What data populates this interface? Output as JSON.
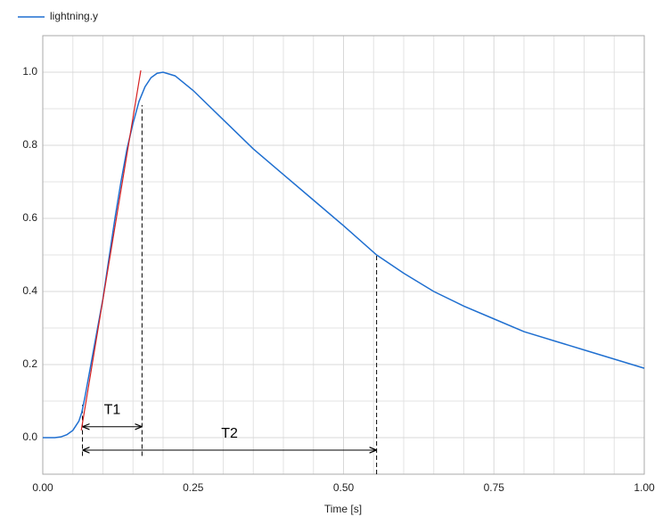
{
  "chart_data": {
    "type": "line",
    "x_label": "Time [s]",
    "x": [
      0,
      0.02,
      0.03,
      0.04,
      0.05,
      0.06,
      0.065,
      0.07,
      0.08,
      0.09,
      0.1,
      0.11,
      0.12,
      0.13,
      0.14,
      0.15,
      0.16,
      0.17,
      0.18,
      0.19,
      0.2,
      0.22,
      0.25,
      0.3,
      0.35,
      0.4,
      0.45,
      0.5,
      0.555,
      0.6,
      0.65,
      0.7,
      0.75,
      0.8,
      0.85,
      0.9,
      0.95,
      1.0
    ],
    "series": [
      {
        "name": "lightning.y",
        "color": "#1f6fd0",
        "values": [
          0,
          0,
          0.002,
          0.008,
          0.02,
          0.045,
          0.07,
          0.11,
          0.2,
          0.29,
          0.38,
          0.49,
          0.6,
          0.7,
          0.79,
          0.86,
          0.92,
          0.96,
          0.985,
          0.997,
          1.0,
          0.99,
          0.95,
          0.87,
          0.79,
          0.72,
          0.65,
          0.58,
          0.5,
          0.45,
          0.4,
          0.36,
          0.325,
          0.29,
          0.265,
          0.24,
          0.215,
          0.19
        ]
      }
    ],
    "tangent": {
      "color": "#d62020",
      "x": [
        0.064,
        0.163
      ],
      "y": [
        0.02,
        1.005
      ]
    },
    "dashed_lines": [
      {
        "x": 0.066,
        "y1": -0.05,
        "y2": 0.09
      },
      {
        "x": 0.165,
        "y1": -0.05,
        "y2": 0.91
      },
      {
        "x": 0.555,
        "y1": -0.1,
        "y2": 0.5
      }
    ],
    "arrows": [
      {
        "label": "T1",
        "x1": 0.066,
        "x2": 0.165,
        "y": 0.03,
        "label_y": 0.075
      },
      {
        "label": "T2",
        "x1": 0.066,
        "x2": 0.555,
        "y": -0.034,
        "label_y": 0.01
      }
    ],
    "xlim": [
      0,
      1
    ],
    "ylim": [
      -0.1,
      1.1
    ],
    "xticks": [
      {
        "value": 0,
        "label": "0.00"
      },
      0.25,
      {
        "value": 0.5,
        "label": "0.50"
      },
      0.75,
      {
        "value": 1,
        "label": "1.00"
      }
    ],
    "yticks": [
      {
        "value": 0,
        "label": "0.0"
      },
      0.2,
      0.4,
      0.6,
      0.8,
      {
        "value": 1,
        "label": "1.0"
      }
    ],
    "x_minor_ticks": [
      0.05,
      0.1,
      0.15,
      0.2,
      0.3,
      0.35,
      0.4,
      0.45,
      0.55,
      0.6,
      0.65,
      0.7,
      0.8,
      0.85,
      0.9,
      0.95
    ],
    "y_minor_ticks": [
      -0.1,
      0.1,
      0.3,
      0.5,
      0.7,
      0.9,
      1.1
    ],
    "grid": true,
    "legend": "top-left"
  }
}
